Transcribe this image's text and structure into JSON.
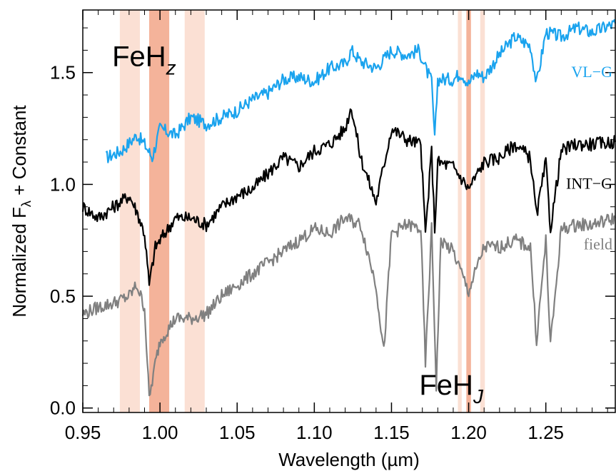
{
  "chart_data": {
    "type": "line",
    "xlabel": "Wavelength (µm)",
    "ylabel": "Normalized F",
    "ylabel_sub": "λ",
    "ylabel_suffix": " + Constant",
    "xlim": [
      0.95,
      1.295
    ],
    "ylim": [
      -0.02,
      1.78
    ],
    "xticks": [
      0.95,
      1.0,
      1.05,
      1.1,
      1.15,
      1.2,
      1.25
    ],
    "xtick_labels": [
      "0.95",
      "1.00",
      "1.05",
      "1.10",
      "1.15",
      "1.20",
      "1.25"
    ],
    "yticks": [
      0.0,
      0.5,
      1.0,
      1.5
    ],
    "ytick_labels": [
      "0.0",
      "0.5",
      "1.0",
      "1.5"
    ],
    "grid": false,
    "annotations": [
      {
        "text": "FeH",
        "sub": "z",
        "x": 0.969,
        "y": 1.53
      },
      {
        "text": "FeH",
        "sub": "J",
        "x": 1.168,
        "y": 0.06
      }
    ],
    "bands": [
      {
        "x0": 0.974,
        "x1": 0.987,
        "color": "#fbe0d4"
      },
      {
        "x0": 0.993,
        "x1": 1.006,
        "color": "#f4b39a"
      },
      {
        "x0": 1.016,
        "x1": 1.029,
        "color": "#fbe0d4"
      },
      {
        "x0": 1.193,
        "x1": 1.1955,
        "color": "#fbe0d4"
      },
      {
        "x0": 1.1985,
        "x1": 1.2015,
        "color": "#f4b39a"
      },
      {
        "x0": 1.2075,
        "x1": 1.2105,
        "color": "#fbe0d4"
      }
    ],
    "series": [
      {
        "name": "VL−G",
        "color": "#1aa3ee",
        "x": [
          0.965,
          0.975,
          0.985,
          0.99,
          0.995,
          1.0,
          1.01,
          1.02,
          1.03,
          1.04,
          1.05,
          1.06,
          1.07,
          1.08,
          1.09,
          1.1,
          1.11,
          1.12,
          1.124,
          1.13,
          1.14,
          1.15,
          1.16,
          1.168,
          1.172,
          1.176,
          1.178,
          1.18,
          1.19,
          1.195,
          1.2,
          1.205,
          1.21,
          1.22,
          1.23,
          1.24,
          1.244,
          1.25,
          1.26,
          1.27,
          1.28,
          1.295
        ],
        "y": [
          1.12,
          1.15,
          1.22,
          1.18,
          1.12,
          1.25,
          1.22,
          1.3,
          1.27,
          1.3,
          1.33,
          1.38,
          1.41,
          1.47,
          1.48,
          1.46,
          1.52,
          1.54,
          1.6,
          1.55,
          1.52,
          1.6,
          1.58,
          1.6,
          1.52,
          1.46,
          1.2,
          1.47,
          1.47,
          1.5,
          1.45,
          1.5,
          1.48,
          1.58,
          1.66,
          1.62,
          1.45,
          1.68,
          1.66,
          1.7,
          1.68,
          1.72
        ]
      },
      {
        "name": "INT−G",
        "color": "#000000",
        "x": [
          0.95,
          0.96,
          0.97,
          0.98,
          0.985,
          0.99,
          0.993,
          0.997,
          1.0,
          1.005,
          1.01,
          1.02,
          1.03,
          1.04,
          1.05,
          1.06,
          1.07,
          1.08,
          1.09,
          1.1,
          1.11,
          1.12,
          1.124,
          1.13,
          1.14,
          1.15,
          1.16,
          1.169,
          1.172,
          1.176,
          1.178,
          1.18,
          1.19,
          1.2,
          1.21,
          1.22,
          1.23,
          1.24,
          1.244,
          1.25,
          1.253,
          1.26,
          1.27,
          1.28,
          1.295
        ],
        "y": [
          0.9,
          0.85,
          0.9,
          0.95,
          0.88,
          0.78,
          0.55,
          0.72,
          0.75,
          0.8,
          0.85,
          0.85,
          0.82,
          0.9,
          0.95,
          0.98,
          1.05,
          1.12,
          1.08,
          1.15,
          1.18,
          1.25,
          1.35,
          1.12,
          0.92,
          1.25,
          1.2,
          1.18,
          0.78,
          1.15,
          0.8,
          1.1,
          1.08,
          0.98,
          1.1,
          1.12,
          1.18,
          1.12,
          0.86,
          1.1,
          0.8,
          1.15,
          1.18,
          1.18,
          1.19
        ]
      },
      {
        "name": "field",
        "color": "#808080",
        "x": [
          0.95,
          0.96,
          0.97,
          0.98,
          0.985,
          0.99,
          0.993,
          0.997,
          1.0,
          1.005,
          1.01,
          1.02,
          1.03,
          1.04,
          1.05,
          1.06,
          1.07,
          1.08,
          1.09,
          1.1,
          1.11,
          1.12,
          1.13,
          1.14,
          1.145,
          1.15,
          1.16,
          1.169,
          1.172,
          1.176,
          1.179,
          1.182,
          1.19,
          1.2,
          1.21,
          1.22,
          1.23,
          1.24,
          1.244,
          1.25,
          1.253,
          1.26,
          1.27,
          1.28,
          1.295
        ],
        "y": [
          0.42,
          0.45,
          0.47,
          0.5,
          0.55,
          0.45,
          0.04,
          0.2,
          0.3,
          0.35,
          0.4,
          0.4,
          0.42,
          0.5,
          0.55,
          0.6,
          0.65,
          0.7,
          0.75,
          0.8,
          0.78,
          0.85,
          0.82,
          0.55,
          0.25,
          0.78,
          0.82,
          0.8,
          0.2,
          0.8,
          0.1,
          0.75,
          0.7,
          0.52,
          0.72,
          0.72,
          0.75,
          0.72,
          0.3,
          0.75,
          0.28,
          0.8,
          0.82,
          0.82,
          0.85
        ]
      }
    ]
  }
}
